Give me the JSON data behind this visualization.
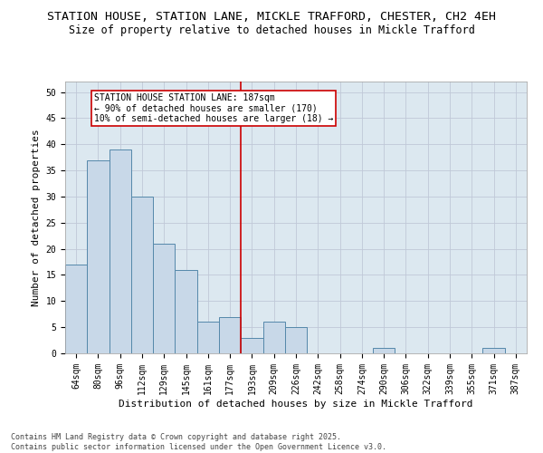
{
  "title_line1": "STATION HOUSE, STATION LANE, MICKLE TRAFFORD, CHESTER, CH2 4EH",
  "title_line2": "Size of property relative to detached houses in Mickle Trafford",
  "xlabel": "Distribution of detached houses by size in Mickle Trafford",
  "ylabel": "Number of detached properties",
  "categories": [
    "64sqm",
    "80sqm",
    "96sqm",
    "112sqm",
    "129sqm",
    "145sqm",
    "161sqm",
    "177sqm",
    "193sqm",
    "209sqm",
    "226sqm",
    "242sqm",
    "258sqm",
    "274sqm",
    "290sqm",
    "306sqm",
    "322sqm",
    "339sqm",
    "355sqm",
    "371sqm",
    "387sqm"
  ],
  "values": [
    17,
    37,
    39,
    30,
    21,
    16,
    6,
    7,
    3,
    6,
    5,
    0,
    0,
    0,
    1,
    0,
    0,
    0,
    0,
    1,
    0
  ],
  "bar_color": "#c8d8e8",
  "bar_edge_color": "#5588aa",
  "vline_x_index": 7.5,
  "vline_color": "#cc0000",
  "annotation_box_text": "STATION HOUSE STATION LANE: 187sqm\n← 90% of detached houses are smaller (170)\n10% of semi-detached houses are larger (18) →",
  "annotation_box_color": "#cc0000",
  "annotation_box_fill": "#ffffff",
  "ylim": [
    0,
    52
  ],
  "yticks": [
    0,
    5,
    10,
    15,
    20,
    25,
    30,
    35,
    40,
    45,
    50
  ],
  "grid_color": "#c0c8d8",
  "bg_color": "#dce8f0",
  "footer_text": "Contains HM Land Registry data © Crown copyright and database right 2025.\nContains public sector information licensed under the Open Government Licence v3.0.",
  "title_fontsize": 9.5,
  "subtitle_fontsize": 8.5,
  "axis_label_fontsize": 8,
  "tick_fontsize": 7,
  "annotation_fontsize": 7,
  "footer_fontsize": 6
}
